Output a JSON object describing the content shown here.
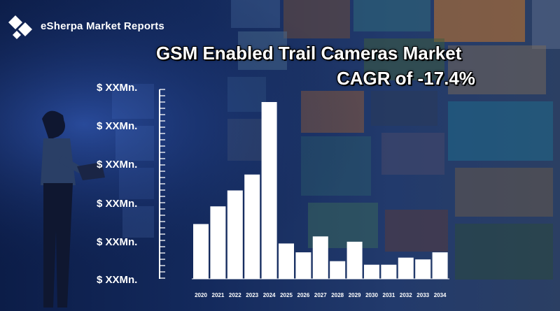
{
  "brand": {
    "name": "eSherpa Market Reports"
  },
  "title": {
    "line1": "GSM Enabled Trail Cameras Market",
    "line2": "CAGR of -17.4%"
  },
  "colors": {
    "bar": "#ffffff",
    "background": "#0b1a3c",
    "text": "#ffffff"
  },
  "chart_data": {
    "type": "bar",
    "categories": [
      "2020",
      "2021",
      "2022",
      "2023",
      "2024",
      "2025",
      "2026",
      "2027",
      "2028",
      "2029",
      "2030",
      "2031",
      "2032",
      "2033",
      "2034"
    ],
    "values": [
      31,
      41,
      50,
      59,
      100,
      20,
      15,
      24,
      10,
      21,
      8,
      8,
      12,
      11,
      15
    ],
    "y_tick_labels": [
      "$ XXMn.",
      "$ XXMn.",
      "$ XXMn.",
      "$ XXMn.",
      "$ XXMn.",
      "$ XXMn."
    ],
    "ylim": [
      0,
      100
    ],
    "xlabel": "",
    "ylabel": "",
    "grid": false,
    "legend": "none"
  }
}
